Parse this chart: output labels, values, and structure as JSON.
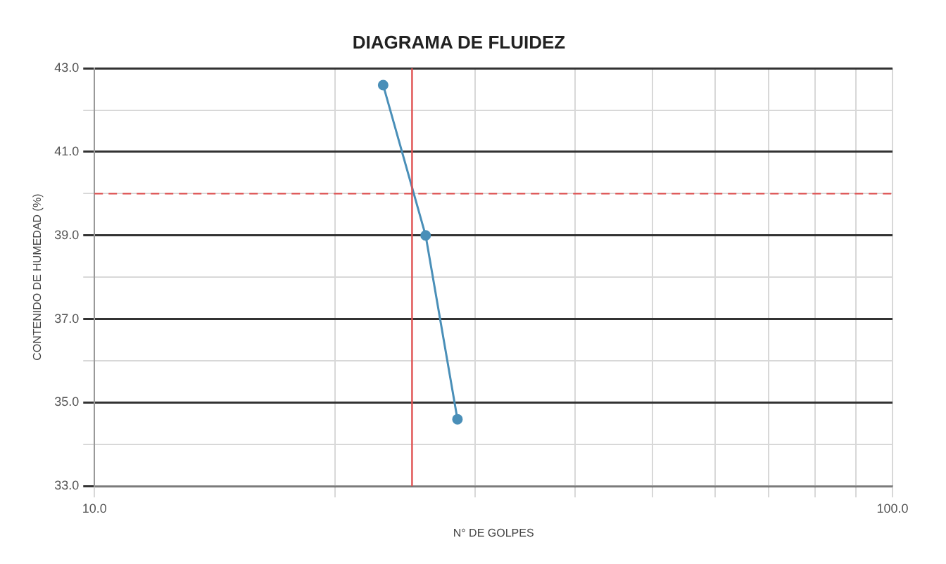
{
  "chart_data": {
    "type": "line",
    "title": "DIAGRAMA DE FLUIDEZ",
    "xlabel": "N° DE GOLPES",
    "ylabel": "CONTENIDO DE HUMEDAD (%)",
    "series": [
      {
        "color": "#4a8fb8",
        "x": [
          23,
          26,
          28.5
        ],
        "values": [
          42.6,
          39.0,
          34.6
        ]
      }
    ],
    "log": "x",
    "xlim": [
      10,
      100
    ],
    "xticks": [
      {
        "value": 10,
        "label": "10.0"
      },
      {
        "value": 20,
        "label": null
      },
      {
        "value": 30,
        "label": null
      },
      {
        "value": 40,
        "label": null
      },
      {
        "value": 50,
        "label": null
      },
      {
        "value": 60,
        "label": null
      },
      {
        "value": 70,
        "label": null
      },
      {
        "value": 80,
        "label": null
      },
      {
        "value": 90,
        "label": null
      },
      {
        "value": 100,
        "label": "100.0"
      }
    ],
    "ylim": [
      33,
      43
    ],
    "yticks": [
      {
        "value": 33,
        "label": "33.0"
      },
      {
        "value": 34,
        "label": null
      },
      {
        "value": 35,
        "label": "35.0"
      },
      {
        "value": 36,
        "label": null
      },
      {
        "value": 37,
        "label": "37.0"
      },
      {
        "value": 38,
        "label": null
      },
      {
        "value": 39,
        "label": "39.0"
      },
      {
        "value": 40,
        "label": null
      },
      {
        "value": 41,
        "label": "41.0"
      },
      {
        "value": 42,
        "label": null
      },
      {
        "value": 43,
        "label": "43.0"
      }
    ],
    "ref_lines": [
      {
        "axis": "x",
        "value": 25,
        "color": "#e05050",
        "line_style": "solid"
      },
      {
        "axis": "y",
        "value": 40,
        "color": "#e05050",
        "line_style": "dashed"
      }
    ],
    "grid": true,
    "legend": false,
    "marker": "circle",
    "line_style": "solid"
  }
}
